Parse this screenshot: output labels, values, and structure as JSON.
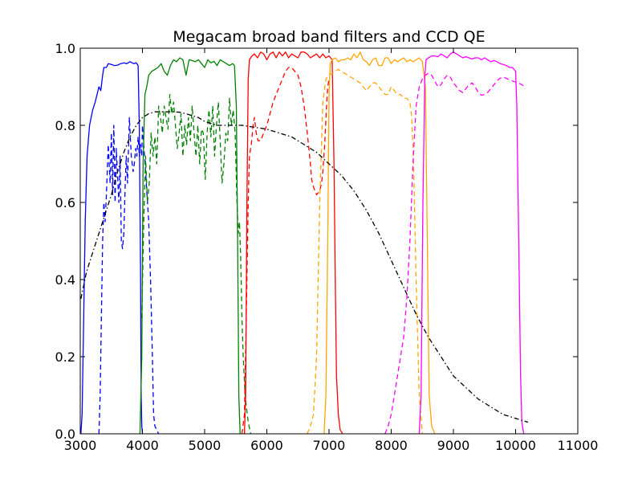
{
  "chart_data": {
    "type": "line",
    "title": "Megacam broad band filters and CCD QE",
    "xlabel": "",
    "ylabel": "",
    "xlim": [
      3000,
      11000
    ],
    "ylim": [
      0.0,
      1.0
    ],
    "x_ticks": [
      "3000",
      "4000",
      "5000",
      "6000",
      "7000",
      "8000",
      "9000",
      "10000",
      "11000"
    ],
    "y_ticks": [
      "0.0",
      "0.2",
      "0.4",
      "0.6",
      "0.8",
      "1.0"
    ],
    "grid": false,
    "legend": "none",
    "series": [
      {
        "color": "#0000ff",
        "style": "solid",
        "x": [
          3010,
          3030,
          3050,
          3080,
          3110,
          3150,
          3200,
          3240,
          3270,
          3300,
          3330,
          3360,
          3380,
          3420,
          3450,
          3500,
          3550,
          3600,
          3650,
          3700,
          3750,
          3800,
          3860,
          3900,
          3930,
          3950,
          3970,
          3980,
          3990,
          4000
        ],
        "y": [
          0.0,
          0.05,
          0.25,
          0.55,
          0.72,
          0.8,
          0.84,
          0.86,
          0.88,
          0.9,
          0.89,
          0.93,
          0.95,
          0.95,
          0.96,
          0.958,
          0.955,
          0.956,
          0.96,
          0.962,
          0.96,
          0.965,
          0.96,
          0.962,
          0.955,
          0.8,
          0.4,
          0.1,
          0.02,
          0.0
        ]
      },
      {
        "color": "#0000ff",
        "style": "dashed",
        "x": [
          3300,
          3320,
          3340,
          3360,
          3380,
          3400,
          3420,
          3450,
          3480,
          3500,
          3520,
          3540,
          3560,
          3580,
          3600,
          3620,
          3640,
          3660,
          3680,
          3700,
          3720,
          3740,
          3760,
          3790,
          3820,
          3850,
          3870,
          3890,
          3910,
          3930,
          3950,
          3970,
          3990,
          4000,
          4050,
          4100,
          4130,
          4160,
          4180,
          4200,
          4230,
          4260
        ],
        "y": [
          0.0,
          0.1,
          0.3,
          0.5,
          0.6,
          0.55,
          0.62,
          0.75,
          0.65,
          0.78,
          0.62,
          0.8,
          0.6,
          0.74,
          0.67,
          0.6,
          0.72,
          0.5,
          0.48,
          0.52,
          0.63,
          0.72,
          0.65,
          0.82,
          0.72,
          0.68,
          0.7,
          0.74,
          0.72,
          0.77,
          0.72,
          0.75,
          0.72,
          0.8,
          0.68,
          0.55,
          0.4,
          0.2,
          0.05,
          0.02,
          0.01,
          0.0
        ]
      },
      {
        "color": "#008000",
        "style": "solid",
        "x": [
          3960,
          3990,
          4010,
          4040,
          4070,
          4100,
          4150,
          4200,
          4250,
          4300,
          4350,
          4400,
          4450,
          4500,
          4550,
          4600,
          4650,
          4700,
          4750,
          4800,
          4850,
          4900,
          4950,
          5000,
          5050,
          5100,
          5150,
          5200,
          5250,
          5300,
          5350,
          5400,
          5450,
          5480,
          5510,
          5530,
          5550,
          5570
        ],
        "y": [
          0.0,
          0.2,
          0.7,
          0.88,
          0.9,
          0.93,
          0.94,
          0.945,
          0.95,
          0.96,
          0.94,
          0.93,
          0.955,
          0.97,
          0.965,
          0.975,
          0.97,
          0.93,
          0.97,
          0.968,
          0.965,
          0.97,
          0.96,
          0.95,
          0.97,
          0.962,
          0.966,
          0.955,
          0.97,
          0.965,
          0.96,
          0.955,
          0.96,
          0.955,
          0.85,
          0.5,
          0.1,
          0.0
        ]
      },
      {
        "color": "#008000",
        "style": "dashed",
        "x": [
          3990,
          4020,
          4050,
          4080,
          4110,
          4140,
          4170,
          4200,
          4230,
          4260,
          4290,
          4320,
          4350,
          4380,
          4410,
          4440,
          4470,
          4500,
          4530,
          4560,
          4590,
          4620,
          4650,
          4680,
          4710,
          4740,
          4770,
          4800,
          4830,
          4860,
          4890,
          4920,
          4950,
          4980,
          5010,
          5040,
          5070,
          5100,
          5130,
          5160,
          5190,
          5220,
          5250,
          5280,
          5310,
          5340,
          5370,
          5400,
          5430,
          5460,
          5490,
          5520,
          5540,
          5560,
          5580,
          5600,
          5620,
          5650,
          5700,
          5740
        ],
        "y": [
          0.3,
          0.55,
          0.72,
          0.6,
          0.65,
          0.78,
          0.72,
          0.77,
          0.7,
          0.85,
          0.82,
          0.78,
          0.85,
          0.82,
          0.79,
          0.88,
          0.83,
          0.86,
          0.8,
          0.74,
          0.78,
          0.83,
          0.72,
          0.8,
          0.75,
          0.82,
          0.76,
          0.85,
          0.78,
          0.72,
          0.8,
          0.7,
          0.79,
          0.78,
          0.66,
          0.78,
          0.84,
          0.77,
          0.85,
          0.72,
          0.8,
          0.86,
          0.76,
          0.65,
          0.7,
          0.78,
          0.76,
          0.87,
          0.8,
          0.84,
          0.78,
          0.6,
          0.52,
          0.55,
          0.45,
          0.3,
          0.2,
          0.1,
          0.03,
          0.0
        ]
      },
      {
        "color": "#ff0000",
        "style": "solid",
        "x": [
          5640,
          5660,
          5680,
          5700,
          5720,
          5760,
          5800,
          5850,
          5900,
          5950,
          6000,
          6050,
          6100,
          6150,
          6200,
          6250,
          6300,
          6350,
          6400,
          6450,
          6500,
          6550,
          6600,
          6650,
          6700,
          6750,
          6800,
          6850,
          6900,
          6950,
          7000,
          7050,
          7080,
          7100,
          7120,
          7150,
          7180,
          7220
        ],
        "y": [
          0.0,
          0.1,
          0.6,
          0.92,
          0.97,
          0.98,
          0.985,
          0.975,
          0.99,
          0.985,
          0.97,
          0.985,
          0.99,
          0.975,
          0.99,
          0.98,
          0.99,
          0.975,
          0.985,
          0.98,
          0.975,
          0.99,
          0.99,
          0.985,
          0.975,
          0.98,
          0.985,
          0.975,
          0.985,
          0.975,
          0.98,
          0.97,
          0.7,
          0.4,
          0.15,
          0.05,
          0.01,
          0.0
        ]
      },
      {
        "color": "#ff0000",
        "style": "dashed",
        "x": [
          5600,
          5640,
          5680,
          5700,
          5720,
          5750,
          5780,
          5800,
          5830,
          5860,
          5900,
          5950,
          6000,
          6050,
          6100,
          6150,
          6200,
          6250,
          6300,
          6350,
          6400,
          6450,
          6500,
          6550,
          6600,
          6650,
          6700,
          6720,
          6750,
          6800,
          6850,
          6880,
          6900,
          6930,
          6960,
          6980,
          7000
        ],
        "y": [
          0.0,
          0.05,
          0.4,
          0.6,
          0.72,
          0.75,
          0.8,
          0.82,
          0.78,
          0.76,
          0.76,
          0.78,
          0.8,
          0.83,
          0.86,
          0.88,
          0.9,
          0.92,
          0.94,
          0.95,
          0.95,
          0.94,
          0.93,
          0.9,
          0.85,
          0.78,
          0.7,
          0.66,
          0.64,
          0.62,
          0.63,
          0.65,
          0.68,
          0.75,
          0.85,
          0.9,
          0.92
        ]
      },
      {
        "color": "#ffa500",
        "style": "solid",
        "x": [
          6920,
          6950,
          6980,
          7000,
          7020,
          7050,
          7100,
          7150,
          7200,
          7250,
          7300,
          7350,
          7400,
          7450,
          7500,
          7550,
          7600,
          7650,
          7700,
          7750,
          7800,
          7850,
          7900,
          7950,
          8000,
          8050,
          8100,
          8150,
          8200,
          8250,
          8300,
          8350,
          8400,
          8450,
          8500,
          8550,
          8580,
          8610,
          8650,
          8700
        ],
        "y": [
          0.0,
          0.1,
          0.5,
          0.88,
          0.96,
          0.97,
          0.975,
          0.965,
          0.97,
          0.97,
          0.975,
          0.97,
          0.985,
          0.975,
          0.99,
          0.97,
          0.965,
          0.955,
          0.97,
          0.975,
          0.955,
          0.955,
          0.975,
          0.975,
          0.96,
          0.97,
          0.965,
          0.97,
          0.975,
          0.965,
          0.97,
          0.965,
          0.97,
          0.975,
          0.965,
          0.9,
          0.5,
          0.1,
          0.02,
          0.0
        ]
      },
      {
        "color": "#ffa500",
        "style": "dashed",
        "x": [
          6650,
          6700,
          6750,
          6800,
          6850,
          6900,
          6950,
          7000,
          7050,
          7100,
          7150,
          7200,
          7250,
          7300,
          7350,
          7400,
          7450,
          7500,
          7550,
          7600,
          7650,
          7700,
          7750,
          7800,
          7850,
          7900,
          7950,
          8000,
          8050,
          8100,
          8150,
          8200,
          8250,
          8300,
          8330,
          8360,
          8400,
          8450,
          8500
        ],
        "y": [
          0.0,
          0.02,
          0.05,
          0.2,
          0.6,
          0.86,
          0.92,
          0.93,
          0.935,
          0.94,
          0.945,
          0.94,
          0.935,
          0.93,
          0.925,
          0.92,
          0.915,
          0.91,
          0.9,
          0.89,
          0.9,
          0.91,
          0.91,
          0.9,
          0.89,
          0.88,
          0.88,
          0.9,
          0.89,
          0.88,
          0.88,
          0.87,
          0.87,
          0.86,
          0.82,
          0.7,
          0.4,
          0.1,
          0.0
        ]
      },
      {
        "color": "#ff00ff",
        "style": "solid",
        "x": [
          8450,
          8480,
          8510,
          8540,
          8560,
          8600,
          8650,
          8700,
          8750,
          8800,
          8850,
          8900,
          8950,
          9000,
          9050,
          9100,
          9150,
          9200,
          9250,
          9300,
          9350,
          9400,
          9450,
          9500,
          9550,
          9600,
          9650,
          9700,
          9750,
          9800,
          9850,
          9900,
          9950,
          10000,
          10020,
          10050,
          10080,
          10100,
          10130
        ],
        "y": [
          0.0,
          0.1,
          0.6,
          0.93,
          0.97,
          0.975,
          0.98,
          0.98,
          0.978,
          0.985,
          0.98,
          0.975,
          0.985,
          0.99,
          0.985,
          0.98,
          0.975,
          0.978,
          0.975,
          0.972,
          0.975,
          0.975,
          0.97,
          0.975,
          0.97,
          0.965,
          0.968,
          0.965,
          0.96,
          0.958,
          0.955,
          0.95,
          0.95,
          0.94,
          0.85,
          0.5,
          0.15,
          0.03,
          0.0
        ]
      },
      {
        "color": "#ff00ff",
        "style": "dashed",
        "x": [
          7900,
          7950,
          8000,
          8050,
          8100,
          8150,
          8200,
          8250,
          8300,
          8350,
          8400,
          8450,
          8500,
          8550,
          8600,
          8650,
          8700,
          8750,
          8800,
          8850,
          8900,
          8950,
          9000,
          9050,
          9100,
          9150,
          9200,
          9250,
          9300,
          9350,
          9400,
          9450,
          9500,
          9550,
          9600,
          9650,
          9700,
          9750,
          9800,
          9850,
          9900,
          9950,
          10000,
          10050,
          10100,
          10150
        ],
        "y": [
          0.0,
          0.02,
          0.05,
          0.1,
          0.15,
          0.2,
          0.25,
          0.35,
          0.5,
          0.7,
          0.85,
          0.9,
          0.92,
          0.93,
          0.935,
          0.93,
          0.915,
          0.9,
          0.905,
          0.92,
          0.93,
          0.925,
          0.91,
          0.9,
          0.89,
          0.885,
          0.895,
          0.905,
          0.91,
          0.9,
          0.885,
          0.878,
          0.88,
          0.885,
          0.895,
          0.905,
          0.915,
          0.922,
          0.925,
          0.922,
          0.918,
          0.915,
          0.912,
          0.91,
          0.905,
          0.9
        ]
      },
      {
        "color": "#000000",
        "style": "dashdot",
        "x": [
          3010,
          3100,
          3200,
          3300,
          3400,
          3500,
          3600,
          3700,
          3800,
          3900,
          4000,
          4100,
          4200,
          4300,
          4400,
          4500,
          4600,
          4700,
          4800,
          4900,
          5000,
          5200,
          5400,
          5600,
          5800,
          6000,
          6200,
          6400,
          6600,
          6800,
          7000,
          7200,
          7400,
          7600,
          7800,
          8000,
          8200,
          8400,
          8600,
          8800,
          9000,
          9200,
          9400,
          9600,
          9800,
          10000,
          10200
        ],
        "y": [
          0.35,
          0.42,
          0.47,
          0.52,
          0.57,
          0.62,
          0.68,
          0.73,
          0.77,
          0.8,
          0.82,
          0.83,
          0.835,
          0.835,
          0.835,
          0.835,
          0.834,
          0.83,
          0.825,
          0.82,
          0.81,
          0.8,
          0.8,
          0.8,
          0.795,
          0.79,
          0.78,
          0.77,
          0.75,
          0.73,
          0.7,
          0.67,
          0.63,
          0.58,
          0.52,
          0.45,
          0.38,
          0.31,
          0.25,
          0.2,
          0.15,
          0.12,
          0.09,
          0.07,
          0.05,
          0.04,
          0.03
        ]
      }
    ]
  }
}
